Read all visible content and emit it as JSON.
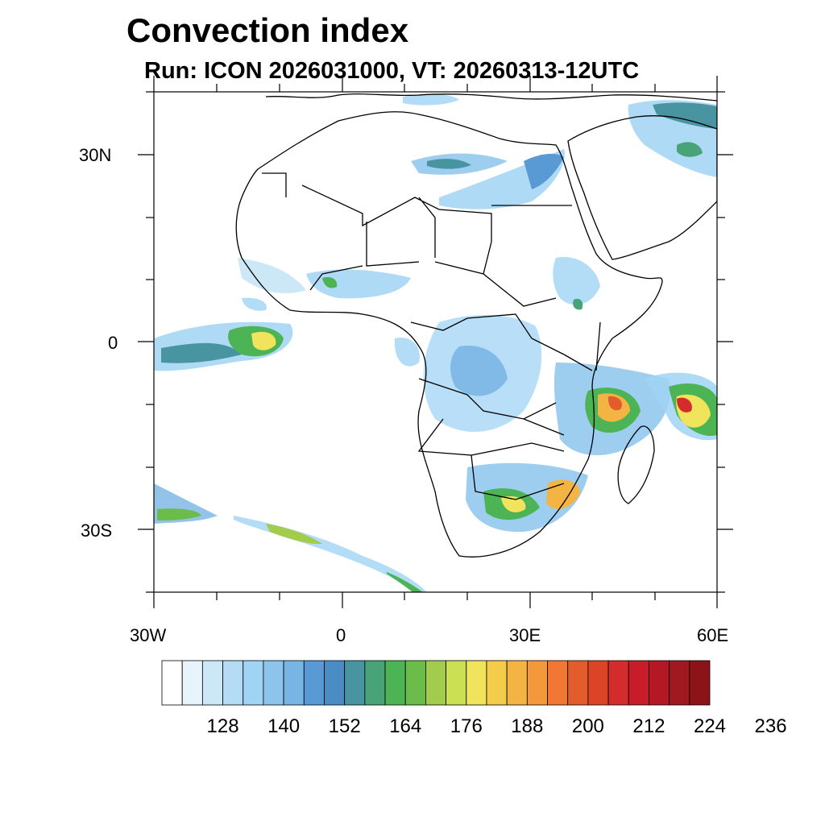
{
  "title": "Convection index",
  "subtitle": "Run: ICON 2026031000,  VT: 20260313-12UTC",
  "map": {
    "lat_labels": [
      "30N",
      "0",
      "30S"
    ],
    "lon_labels": [
      "30W",
      "0",
      "30E",
      "60E"
    ]
  },
  "colorbar": {
    "colors": [
      "#ffffff",
      "#e8f4fc",
      "#cce8f7",
      "#b4dcf4",
      "#a0d4f4",
      "#8cc4ec",
      "#78b4e4",
      "#5a9ad4",
      "#4a8cc4",
      "#4894a0",
      "#48a478",
      "#4cb454",
      "#6cbc4c",
      "#a4cc4c",
      "#cce054",
      "#f0e45c",
      "#f4cc4c",
      "#f4b444",
      "#f4983c",
      "#f07834",
      "#e45c2c",
      "#dc4428",
      "#d42c2c",
      "#c81c28",
      "#b41824",
      "#a01820",
      "#8c1418"
    ],
    "labels": [
      "128",
      "140",
      "152",
      "164",
      "176",
      "188",
      "200",
      "212",
      "224",
      "236"
    ]
  }
}
